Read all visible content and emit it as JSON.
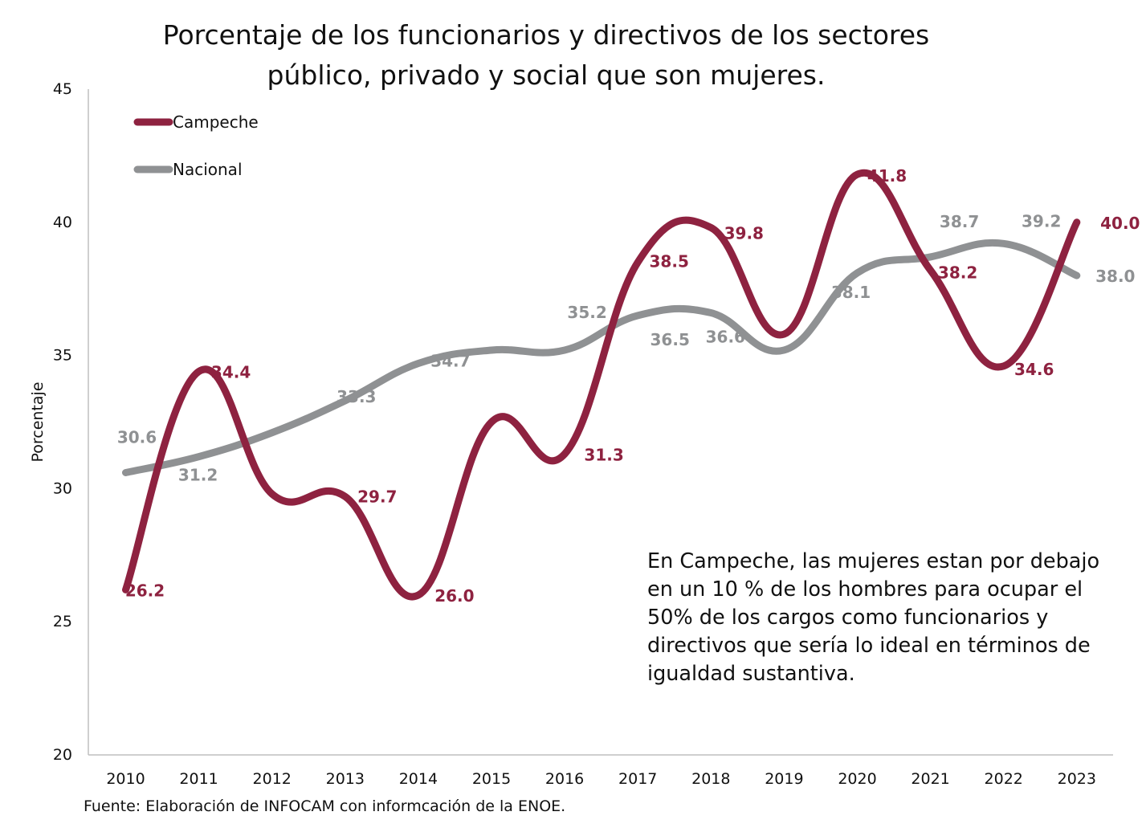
{
  "chart_data": {
    "type": "line",
    "title_line1": "Porcentaje de los funcionarios y directivos de los  sectores",
    "title_line2": "público, privado y social que son mujeres.",
    "xlabel": "",
    "ylabel": "Porcentaje",
    "ylim": [
      20,
      45
    ],
    "yticks": [
      "20",
      "25",
      "30",
      "35",
      "40",
      "45"
    ],
    "categories": [
      "2010",
      "2011",
      "2012",
      "2013",
      "2014",
      "2015",
      "2016",
      "2017",
      "2018",
      "2019",
      "2020",
      "2021",
      "2022",
      "2023"
    ],
    "series": [
      {
        "name": "Campeche",
        "color": "#8e2240",
        "values": [
          26.2,
          34.4,
          29.8,
          29.7,
          26.0,
          32.5,
          31.3,
          38.5,
          39.8,
          35.8,
          41.8,
          38.2,
          34.6,
          40.0
        ],
        "labels": [
          "26.2",
          "34.4",
          "",
          "29.7",
          "26.0",
          "",
          "31.3",
          "38.5",
          "39.8",
          "",
          "41.8",
          "38.2",
          "34.6",
          "40.0"
        ]
      },
      {
        "name": "Nacional",
        "color": "#8f9193",
        "values": [
          30.6,
          31.2,
          32.1,
          33.3,
          34.7,
          35.2,
          35.2,
          36.5,
          36.6,
          35.2,
          38.1,
          38.7,
          39.2,
          38.0
        ],
        "labels": [
          "30.6",
          "31.2",
          "",
          "33.3",
          "34.7",
          "",
          "35.2",
          "36.5",
          "36.6",
          "",
          "38.1",
          "38.7",
          "39.2",
          "38.0"
        ]
      }
    ],
    "legend_position": "top-left",
    "grid": false
  },
  "note": "En Campeche, las mujeres estan por debajo en un 10 % de los hombres para ocupar el 50% de los cargos como funcionarios y directivos que sería lo ideal en términos de igualdad sustantiva.",
  "source": "Fuente: Elaboración de INFOCAM con informcación de la ENOE."
}
